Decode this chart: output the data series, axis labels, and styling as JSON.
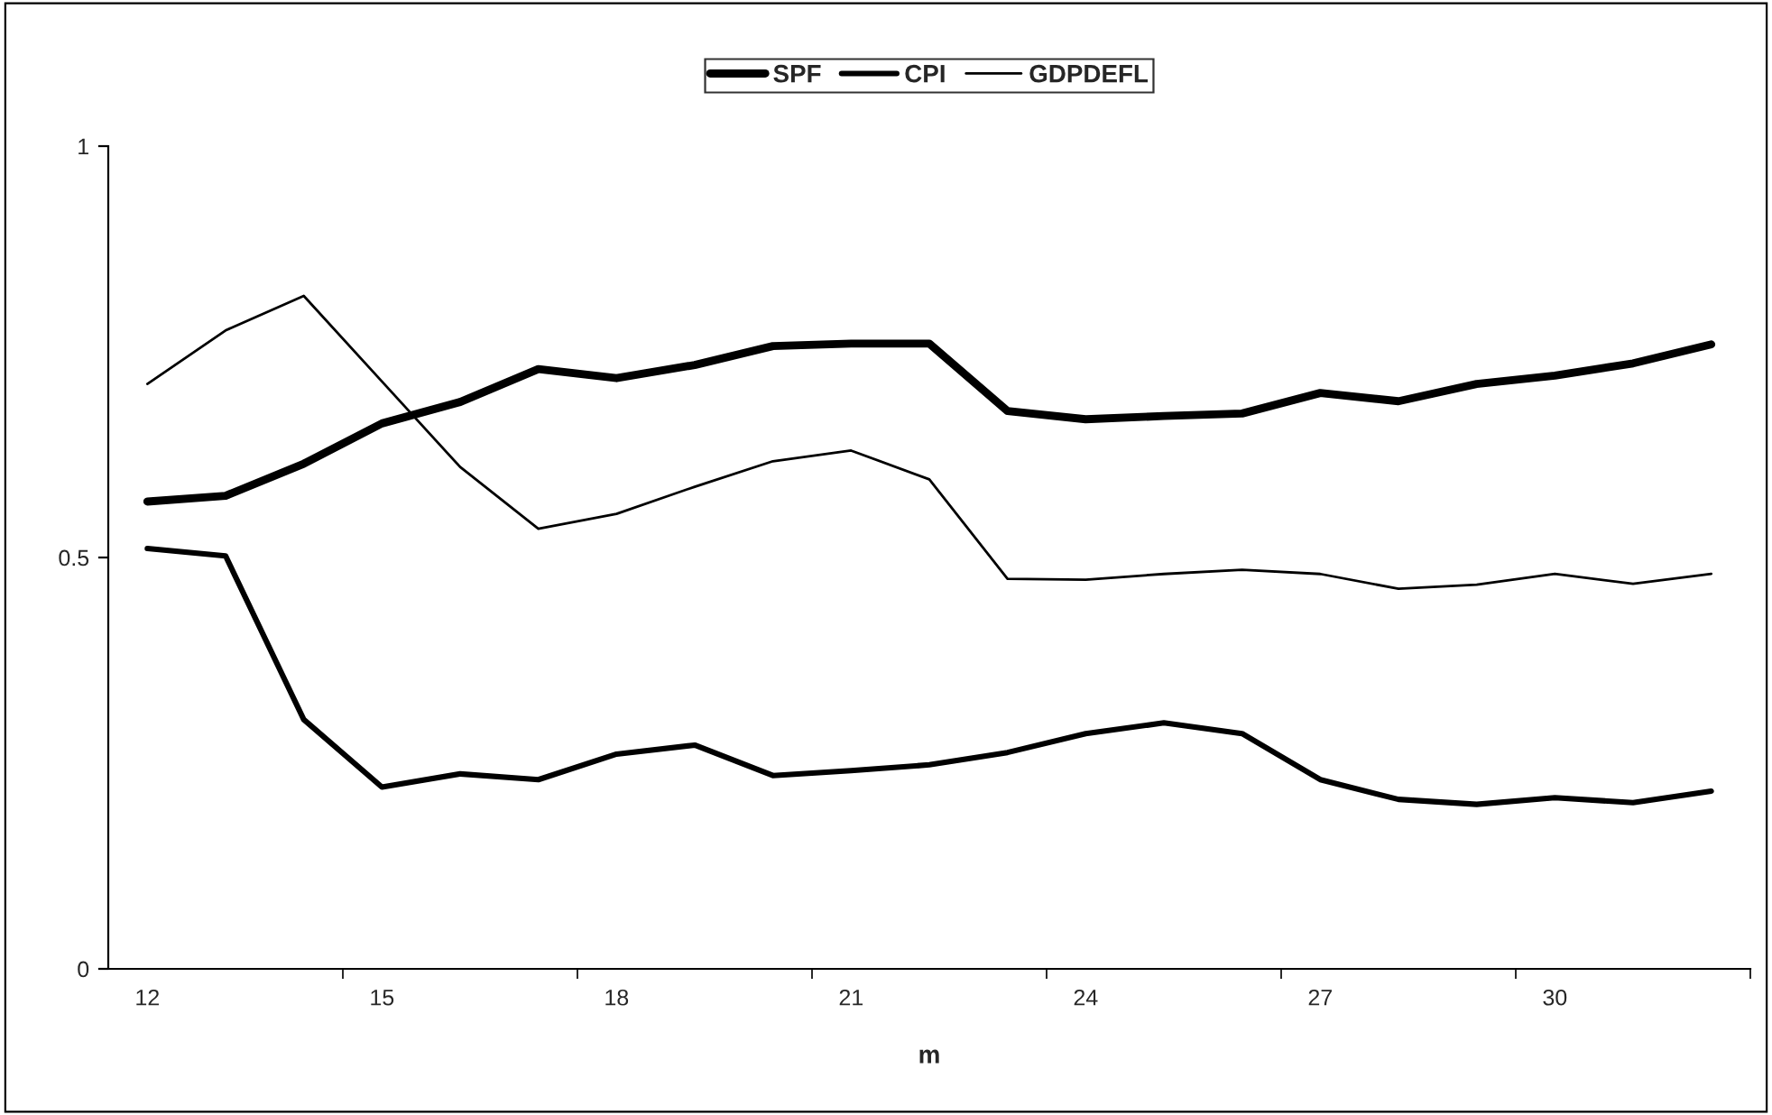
{
  "chart_data": {
    "type": "line",
    "xlabel": "m",
    "categories": [
      "12",
      null,
      null,
      "15",
      null,
      null,
      "18",
      null,
      null,
      "21",
      null,
      null,
      "24",
      null,
      null,
      "27",
      null,
      null,
      "30",
      null,
      null
    ],
    "ylim": [
      0,
      1
    ],
    "yticks": [
      0,
      0.5,
      1
    ],
    "grid": false,
    "legend": "top",
    "marker": "none",
    "series": [
      {
        "name": "SPF",
        "color": "#000000",
        "values": [
          0.568,
          0.575,
          0.614,
          0.663,
          0.689,
          0.729,
          0.718,
          0.734,
          0.757,
          0.76,
          0.76,
          0.678,
          0.668,
          0.672,
          0.675,
          0.7,
          0.69,
          0.711,
          0.721,
          0.736,
          0.759
        ]
      },
      {
        "name": "CPI",
        "color": "#000000",
        "values": [
          0.511,
          0.502,
          0.303,
          0.221,
          0.237,
          0.23,
          0.261,
          0.272,
          0.235,
          0.241,
          0.248,
          0.263,
          0.286,
          0.299,
          0.286,
          0.23,
          0.206,
          0.2,
          0.208,
          0.202,
          0.216
        ]
      },
      {
        "name": "GDPDEFL",
        "color": "#000000",
        "values": [
          0.711,
          0.776,
          0.818,
          0.714,
          0.61,
          0.535,
          0.553,
          0.586,
          0.617,
          0.63,
          0.595,
          0.474,
          0.473,
          0.48,
          0.485,
          0.48,
          0.462,
          0.467,
          0.48,
          0.468,
          0.48
        ]
      }
    ]
  }
}
